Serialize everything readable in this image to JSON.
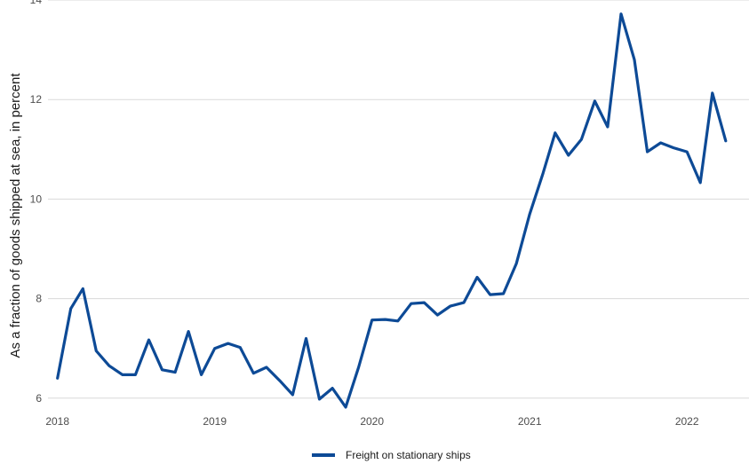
{
  "chart_data": {
    "type": "line",
    "ylabel": "As a fraction of goods shipped at sea, in percent",
    "xlabel": "",
    "ylim": [
      5.8,
      14
    ],
    "xlim": [
      "2017-12-10",
      "2022-05-25"
    ],
    "y_ticks": [
      6,
      8,
      10,
      12,
      14
    ],
    "x_ticks": [
      {
        "date": "2018-01-01",
        "label": "2018"
      },
      {
        "date": "2019-01-01",
        "label": "2019"
      },
      {
        "date": "2020-01-01",
        "label": "2020"
      },
      {
        "date": "2021-01-01",
        "label": "2021"
      },
      {
        "date": "2022-01-01",
        "label": "2022"
      }
    ],
    "grid": "horizontal",
    "legend_position": "bottom",
    "series": [
      {
        "name": "Freight on stationary ships",
        "color": "#0d4a96",
        "x": [
          "2018-01",
          "2018-02",
          "2018-03",
          "2018-04",
          "2018-05",
          "2018-06",
          "2018-07",
          "2018-08",
          "2018-09",
          "2018-10",
          "2018-11",
          "2018-12",
          "2019-01",
          "2019-02",
          "2019-03",
          "2019-04",
          "2019-05",
          "2019-06",
          "2019-07",
          "2019-08",
          "2019-09",
          "2019-10",
          "2019-11",
          "2019-12",
          "2020-01",
          "2020-02",
          "2020-03",
          "2020-04",
          "2020-05",
          "2020-06",
          "2020-07",
          "2020-08",
          "2020-09",
          "2020-10",
          "2020-11",
          "2020-12",
          "2021-01",
          "2021-02",
          "2021-03",
          "2021-04",
          "2021-05",
          "2021-06",
          "2021-07",
          "2021-08",
          "2021-09",
          "2021-10",
          "2021-11",
          "2021-12",
          "2022-01",
          "2022-02",
          "2022-03",
          "2022-04"
        ],
        "values": [
          6.4,
          7.8,
          8.2,
          6.95,
          6.65,
          6.47,
          6.47,
          7.17,
          6.57,
          6.52,
          7.34,
          6.47,
          7.0,
          7.1,
          7.02,
          6.5,
          6.62,
          6.35,
          6.07,
          7.2,
          5.98,
          6.2,
          5.82,
          6.62,
          7.57,
          7.58,
          7.55,
          7.9,
          7.92,
          7.67,
          7.85,
          7.92,
          8.43,
          8.08,
          8.1,
          8.7,
          9.7,
          10.52,
          11.33,
          10.88,
          11.2,
          11.97,
          11.45,
          13.72,
          12.8,
          10.95,
          11.13,
          11.03,
          10.95,
          10.33,
          12.13,
          11.17
        ]
      }
    ]
  }
}
